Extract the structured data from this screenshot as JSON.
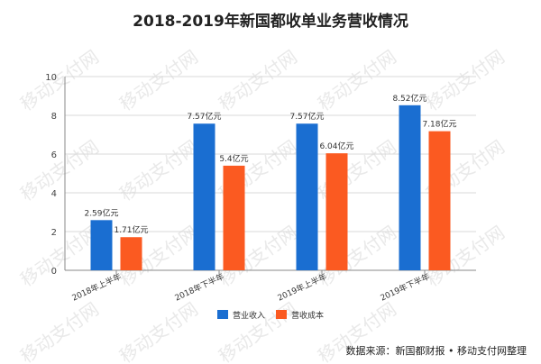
{
  "chart_data": {
    "type": "bar",
    "title": "2018-2019年新国都收单业务营收情况",
    "categories": [
      "2018年上半年",
      "2018年下半年",
      "2019年上半年",
      "2019年下半年"
    ],
    "series": [
      {
        "name": "营业收入",
        "values": [
          2.59,
          7.57,
          7.57,
          8.52
        ],
        "labels": [
          "2.59亿元",
          "7.57亿元",
          "7.57亿元",
          "8.52亿元"
        ],
        "color": "#1a6ed1"
      },
      {
        "name": "营收成本",
        "values": [
          1.71,
          5.4,
          6.04,
          7.18
        ],
        "labels": [
          "1.71亿元",
          "5.4亿元",
          "6.04亿元",
          "7.18亿元"
        ],
        "color": "#fb5a21"
      }
    ],
    "ylim": [
      0,
      10
    ],
    "yticks": [
      0,
      2,
      4,
      6,
      8,
      10
    ],
    "grid": true,
    "legend": "bottom"
  },
  "watermark": "移动支付网",
  "source": "数据来源：新国都财报 • 移动支付网整理"
}
